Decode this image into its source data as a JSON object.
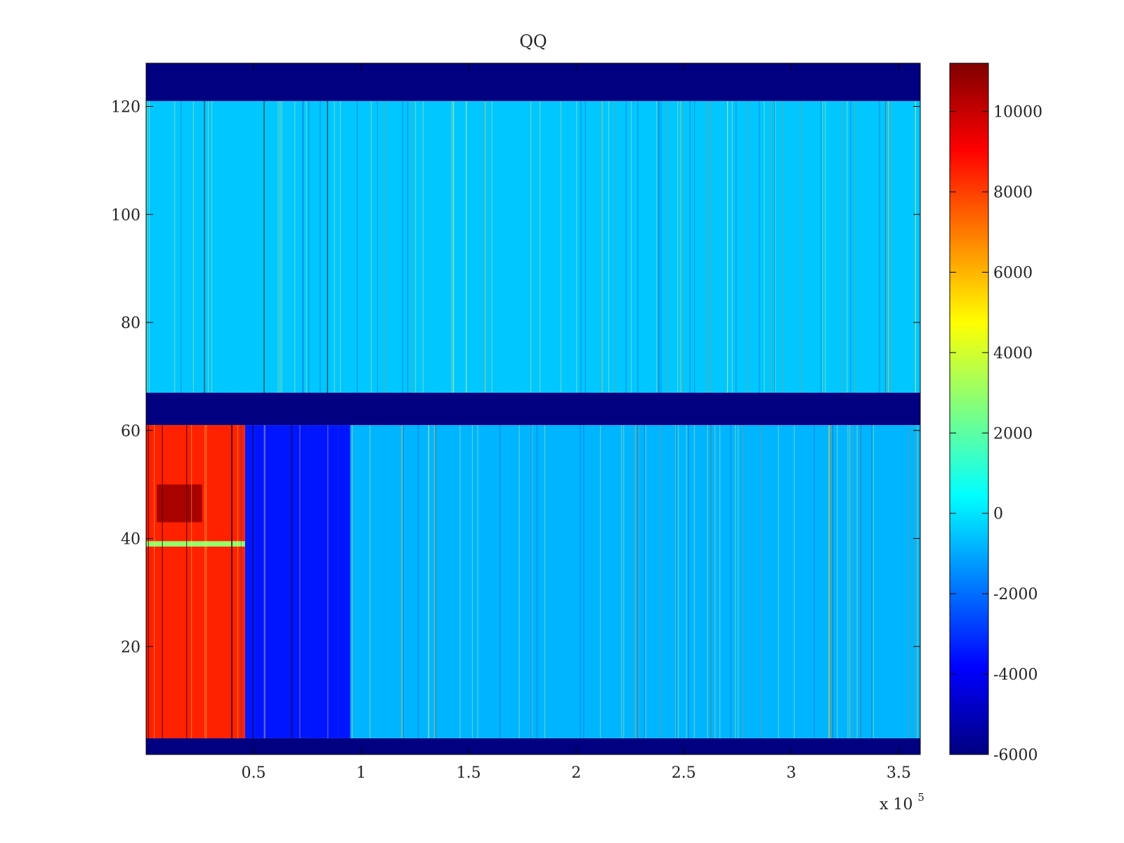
{
  "chart_data": {
    "type": "heatmap",
    "title": "QQ",
    "xlabel": "",
    "ylabel": "",
    "x_multiplier_label": {
      "base": "x 10",
      "exponent": "5"
    },
    "xlim": [
      0,
      3.6
    ],
    "ylim": [
      0,
      128
    ],
    "x_ticks": [
      {
        "value": 0.5,
        "label": "0.5"
      },
      {
        "value": 1.0,
        "label": "1"
      },
      {
        "value": 1.5,
        "label": "1.5"
      },
      {
        "value": 2.0,
        "label": "2"
      },
      {
        "value": 2.5,
        "label": "2.5"
      },
      {
        "value": 3.0,
        "label": "3"
      },
      {
        "value": 3.5,
        "label": "3.5"
      }
    ],
    "y_ticks": [
      {
        "value": 20,
        "label": "20"
      },
      {
        "value": 40,
        "label": "40"
      },
      {
        "value": 60,
        "label": "60"
      },
      {
        "value": 80,
        "label": "80"
      },
      {
        "value": 100,
        "label": "100"
      },
      {
        "value": 120,
        "label": "120"
      }
    ],
    "colormap": "jet",
    "colorbar": {
      "range": [
        -6000,
        11200
      ],
      "ticks": [
        {
          "value": 10000,
          "label": "10000"
        },
        {
          "value": 8000,
          "label": "8000"
        },
        {
          "value": 6000,
          "label": "6000"
        },
        {
          "value": 4000,
          "label": "4000"
        },
        {
          "value": 2000,
          "label": "2000"
        },
        {
          "value": 0,
          "label": "0"
        },
        {
          "value": -2000,
          "label": "-2000"
        },
        {
          "value": -4000,
          "label": "-4000"
        },
        {
          "value": -6000,
          "label": "-6000"
        }
      ]
    },
    "regions": [
      {
        "y_range": [
          0,
          3
        ],
        "x_range": [
          0,
          3.6
        ],
        "value": -6000
      },
      {
        "y_range": [
          3,
          61
        ],
        "x_range": [
          0,
          0.46
        ],
        "value": 8500
      },
      {
        "y_range": [
          43,
          50
        ],
        "x_range": [
          0.05,
          0.26
        ],
        "value": 10500
      },
      {
        "y_range": [
          38.5,
          39.5
        ],
        "x_range": [
          0,
          0.46
        ],
        "value": 3000
      },
      {
        "y_range": [
          3,
          61
        ],
        "x_range": [
          0.46,
          0.95
        ],
        "value": -3500
      },
      {
        "y_range": [
          3,
          61
        ],
        "x_range": [
          0.95,
          3.6
        ],
        "value": -800
      },
      {
        "y_range": [
          61,
          67
        ],
        "x_range": [
          0,
          3.6
        ],
        "value": -6000
      },
      {
        "y_range": [
          67,
          121
        ],
        "x_range": [
          0,
          3.6
        ],
        "value": -500
      },
      {
        "y_range": [
          121,
          128
        ],
        "x_range": [
          0,
          3.6
        ],
        "value": -6000
      }
    ]
  }
}
